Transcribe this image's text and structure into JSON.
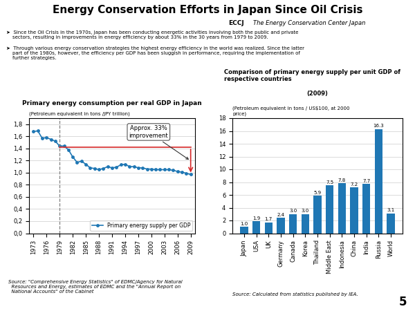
{
  "title": "Energy Conservation Efforts in Japan Since Oil Crisis",
  "header": [
    "ECCJ",
    "The Energy Conservation Center Japan"
  ],
  "bullets": [
    "➤  Since the Oil Crisis in the 1970s, Japan has been conducting energetic activities involving both the public and private\n    sectors, resulting in improvements in energy efficiency by about 33% in the 30 years from 1979 to 2009.",
    "➤  Through various energy conservation strategies the highest energy efficiency in the world was realized. Since the latter\n    part of the 1980s, however, the efficiency per GDP has been sluggish in performance, requiring the implementation of\n    further strategies."
  ],
  "page_number": "5",
  "chart_data": [
    {
      "type": "line",
      "title": "Primary energy consumption per real GDP in Japan",
      "y_label": "(Petroleum equivalent in tons /JPY trillion)",
      "source": "Source: \"Comprehensive Energy Statistics\" of EDMC/Agency for Natural\n  Resources and Energy, estimates of EDMC and the \"Annual Report on\n  National Accounts\" of the Cabinet",
      "x": [
        1973,
        1974,
        1975,
        1976,
        1977,
        1978,
        1979,
        1980,
        1981,
        1982,
        1983,
        1984,
        1985,
        1986,
        1987,
        1988,
        1989,
        1990,
        1991,
        1992,
        1993,
        1994,
        1995,
        1996,
        1997,
        1998,
        1999,
        2000,
        2001,
        2002,
        2003,
        2004,
        2005,
        2006,
        2007,
        2008,
        2009
      ],
      "series": [
        {
          "name": "Primary energy supply per GDP",
          "marker": "o",
          "values": [
            1.68,
            1.69,
            1.57,
            1.58,
            1.55,
            1.52,
            1.44,
            1.44,
            1.38,
            1.26,
            1.17,
            1.19,
            1.14,
            1.08,
            1.07,
            1.05,
            1.07,
            1.1,
            1.08,
            1.09,
            1.13,
            1.14,
            1.1,
            1.1,
            1.08,
            1.08,
            1.06,
            1.06,
            1.05,
            1.05,
            1.05,
            1.05,
            1.04,
            1.02,
            1.01,
            0.99,
            0.97
          ]
        }
      ],
      "xlim": [
        1972,
        2010
      ],
      "xticks": [
        1973,
        1976,
        1979,
        1982,
        1985,
        1988,
        1991,
        1994,
        1997,
        2000,
        2003,
        2006,
        2009
      ],
      "ylim": [
        0.0,
        1.9
      ],
      "yticks": [
        {
          "value": 0.0,
          "label": "0,0"
        },
        {
          "value": 0.2,
          "label": "0,2"
        },
        {
          "value": 0.4,
          "label": "0,4"
        },
        {
          "value": 0.6,
          "label": "0,6"
        },
        {
          "value": 0.8,
          "label": "0,8"
        },
        {
          "value": 1.0,
          "label": "1,0"
        },
        {
          "value": 1.2,
          "label": "1,2"
        },
        {
          "value": 1.4,
          "label": "1,4"
        },
        {
          "value": 1.6,
          "label": "1,6"
        },
        {
          "value": 1.8,
          "label": "1,8"
        }
      ],
      "annotations": [
        {
          "text": "Approx. 33%\nimprovement",
          "x_start": 1979,
          "x_end": 2009,
          "y_start": 1.42,
          "y_end": 0.97
        }
      ],
      "grid": "y",
      "legend": "lower right"
    },
    {
      "type": "bar",
      "title": "Comparison of primary energy supply per unit GDP of respective countries",
      "subtitle": "(2009)",
      "y_label": "(Petroleum equivalent in tons / US$100, at 2000\nprice)",
      "source": "Source: Calculated from statistics published by IEA.",
      "categories": [
        "Japan",
        "USA",
        "UK",
        "Germany",
        "Canada",
        "Korea",
        "Thailand",
        "Middle East",
        "Indonesia",
        "China",
        "India",
        "Russia",
        "World"
      ],
      "values": [
        1.0,
        1.9,
        1.7,
        2.4,
        3.0,
        3.0,
        5.9,
        7.5,
        7.8,
        7.2,
        7.7,
        16.3,
        3.1
      ],
      "ylim": [
        0,
        18
      ],
      "yticks": [
        0,
        2,
        4,
        6,
        8,
        10,
        12,
        14,
        16,
        18
      ],
      "data_labels": true,
      "grid": "y"
    }
  ]
}
